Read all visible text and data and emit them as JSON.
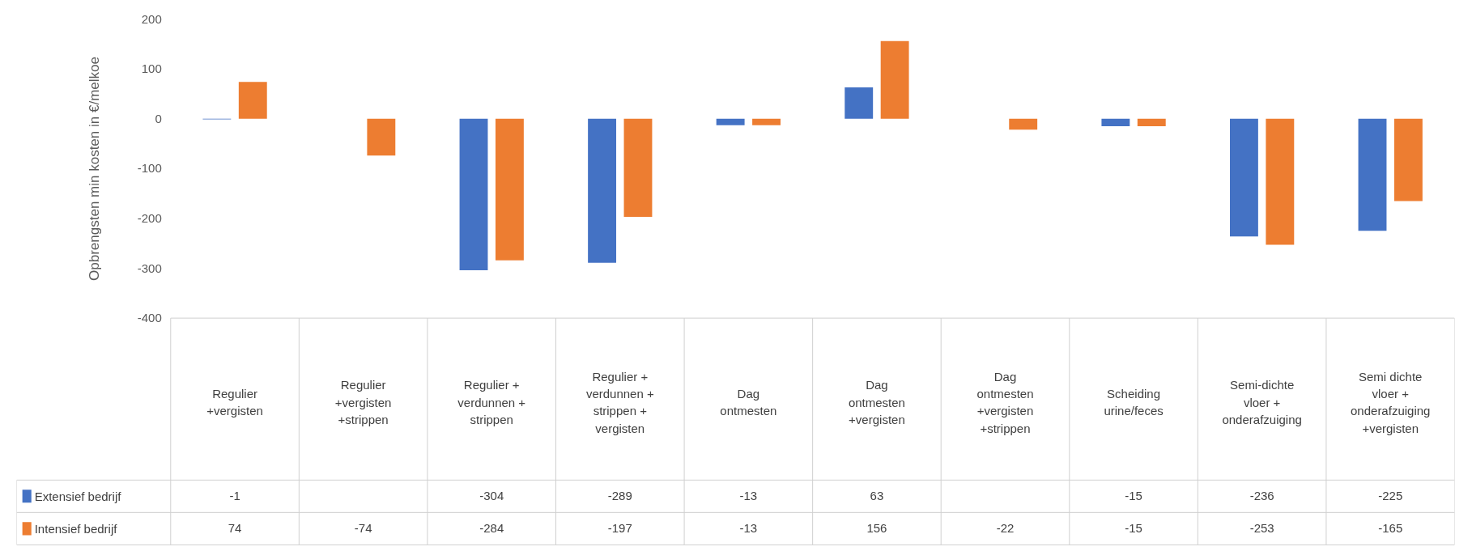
{
  "chart_data": {
    "type": "bar",
    "ylabel": "Opbrengsten min kosten in €/melkoe",
    "categories": [
      "Regulier +vergisten",
      "Regulier +vergisten +strippen",
      "Regulier + verdunnen + strippen",
      "Regulier + verdunnen + strippen + vergisten",
      "Dag ontmesten",
      "Dag ontmesten +vergisten",
      "Dag ontmesten +vergisten +strippen",
      "Scheiding urine/feces",
      "Semi-dichte vloer + onderafzuiging",
      "Semi dichte vloer + onderafzuiging +vergisten"
    ],
    "series": [
      {
        "name": "Extensief bedrijf",
        "color": "#4472c4",
        "values": [
          -1,
          null,
          -304,
          -289,
          -13,
          63,
          null,
          -15,
          -236,
          -225
        ]
      },
      {
        "name": "Intensief bedrijf",
        "color": "#ed7d31",
        "values": [
          74,
          -74,
          -284,
          -197,
          -13,
          156,
          -22,
          -15,
          -253,
          -165
        ]
      }
    ],
    "ylim": [
      -400,
      200
    ],
    "yticks": [
      -400,
      -300,
      -200,
      -100,
      0,
      100,
      200
    ],
    "grid": false,
    "legend": "bottom",
    "data_labels": true
  }
}
